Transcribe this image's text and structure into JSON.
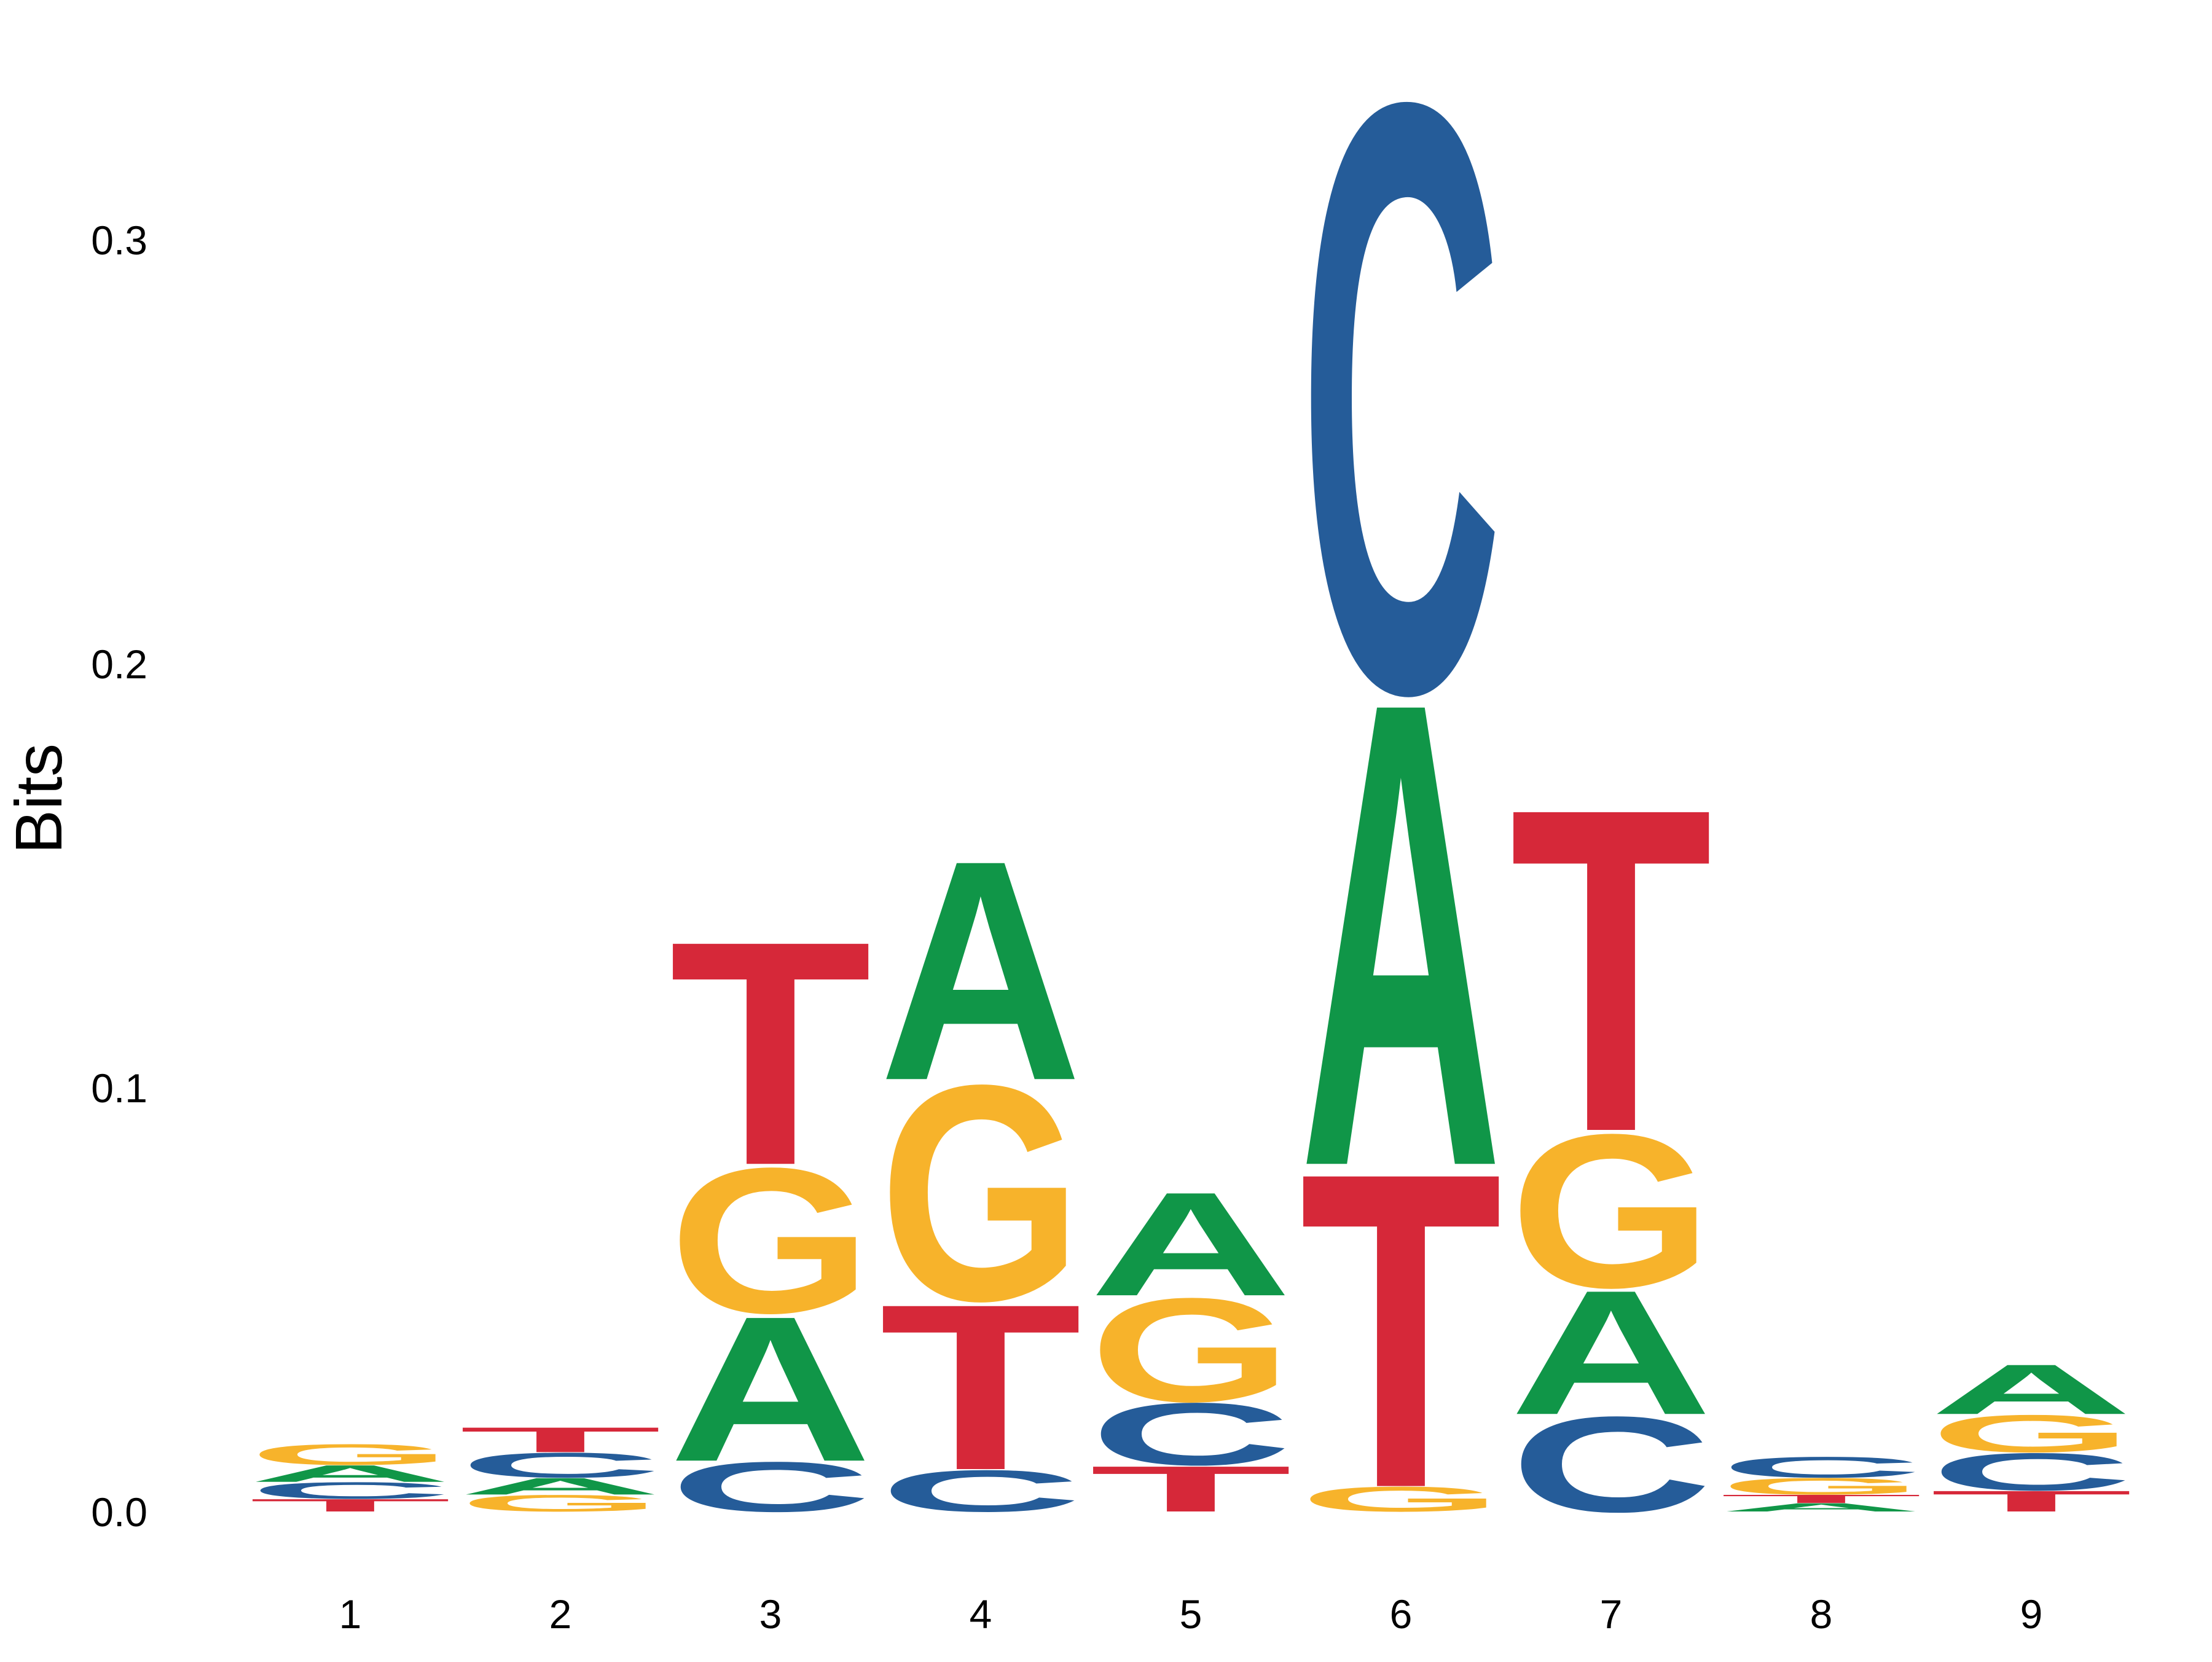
{
  "chart_data": {
    "type": "sequence-logo",
    "title": "",
    "xlabel": "",
    "ylabel": "Bits",
    "ylim": [
      0,
      0.35
    ],
    "yticks": [
      "0.0",
      "0.1",
      "0.2",
      "0.3"
    ],
    "ytick_values": [
      0,
      0.1,
      0.2,
      0.3
    ],
    "grid": false,
    "legend": "none",
    "colors": {
      "A": "#109648",
      "C": "#255C99",
      "G": "#F7B32B",
      "T": "#D62839"
    },
    "positions": [
      {
        "label": "1",
        "stack": [
          {
            "base": "T",
            "bits": 0.003
          },
          {
            "base": "C",
            "bits": 0.004
          },
          {
            "base": "A",
            "bits": 0.004
          },
          {
            "base": "G",
            "bits": 0.005
          }
        ]
      },
      {
        "label": "2",
        "stack": [
          {
            "base": "G",
            "bits": 0.004
          },
          {
            "base": "A",
            "bits": 0.004
          },
          {
            "base": "C",
            "bits": 0.006
          },
          {
            "base": "T",
            "bits": 0.006
          }
        ]
      },
      {
        "label": "3",
        "stack": [
          {
            "base": "C",
            "bits": 0.012
          },
          {
            "base": "A",
            "bits": 0.035
          },
          {
            "base": "G",
            "bits": 0.035
          },
          {
            "base": "T",
            "bits": 0.054
          }
        ]
      },
      {
        "label": "4",
        "stack": [
          {
            "base": "C",
            "bits": 0.01
          },
          {
            "base": "T",
            "bits": 0.04
          },
          {
            "base": "G",
            "bits": 0.052
          },
          {
            "base": "A",
            "bits": 0.053
          }
        ]
      },
      {
        "label": "5",
        "stack": [
          {
            "base": "T",
            "bits": 0.011
          },
          {
            "base": "C",
            "bits": 0.015
          },
          {
            "base": "G",
            "bits": 0.025
          },
          {
            "base": "A",
            "bits": 0.025
          }
        ]
      },
      {
        "label": "6",
        "stack": [
          {
            "base": "G",
            "bits": 0.006
          },
          {
            "base": "T",
            "bits": 0.076
          },
          {
            "base": "A",
            "bits": 0.112
          },
          {
            "base": "C",
            "bits": 0.142
          }
        ]
      },
      {
        "label": "7",
        "stack": [
          {
            "base": "C",
            "bits": 0.023
          },
          {
            "base": "A",
            "bits": 0.03
          },
          {
            "base": "G",
            "bits": 0.037
          },
          {
            "base": "T",
            "bits": 0.078
          }
        ]
      },
      {
        "label": "8",
        "stack": [
          {
            "base": "A",
            "bits": 0.002
          },
          {
            "base": "T",
            "bits": 0.002
          },
          {
            "base": "G",
            "bits": 0.004
          },
          {
            "base": "C",
            "bits": 0.005
          }
        ]
      },
      {
        "label": "9",
        "stack": [
          {
            "base": "T",
            "bits": 0.005
          },
          {
            "base": "C",
            "bits": 0.009
          },
          {
            "base": "G",
            "bits": 0.009
          },
          {
            "base": "A",
            "bits": 0.012
          }
        ]
      }
    ]
  }
}
